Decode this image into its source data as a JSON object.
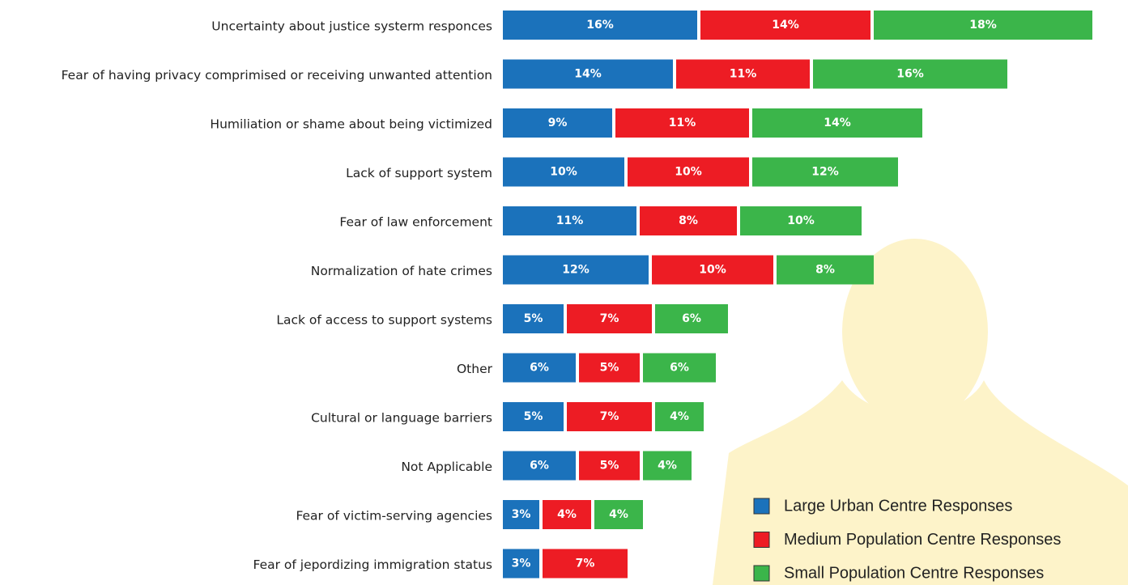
{
  "chart_data": {
    "type": "bar",
    "stacked": true,
    "categories": [
      "Uncertainty about justice systerm responces",
      "Fear of having privacy comprimised or receiving unwanted attention",
      "Humiliation or shame about being victimized",
      "Lack of support system",
      "Fear of law enforcement",
      "Normalization of hate crimes",
      "Lack of access to support systems",
      "Other",
      "Cultural or language barriers",
      "Not Applicable",
      "Fear of victim-serving agencies",
      "Fear of jepordizing immigration status"
    ],
    "series": [
      {
        "name": "Large Urban Centre Responses",
        "color": "#1b72bb",
        "values": [
          16,
          14,
          9,
          10,
          11,
          12,
          5,
          6,
          5,
          6,
          3,
          3
        ],
        "value_labels": [
          "16%",
          "14%",
          "9%",
          "10%",
          "11%",
          "12%",
          "5%",
          "6%",
          "5%",
          "6%",
          "3%",
          "3%"
        ]
      },
      {
        "name": "Medium Population Centre Responses",
        "color": "#ed1c24",
        "values": [
          14,
          11,
          11,
          10,
          8,
          10,
          7,
          5,
          7,
          5,
          4,
          7
        ],
        "value_labels": [
          "14%",
          "11%",
          "11%",
          "10%",
          "8%",
          "10%",
          "7%",
          "5%",
          "7%",
          "5%",
          "4%",
          "7%"
        ]
      },
      {
        "name": "Small Population Centre Responses",
        "color": "#3bb54a",
        "values": [
          18,
          16,
          14,
          12,
          10,
          8,
          6,
          6,
          4,
          4,
          4,
          null
        ],
        "value_labels": [
          "18%",
          "16%",
          "14%",
          "12%",
          "10%",
          "8%",
          "6%",
          "6%",
          "4%",
          "4%",
          "4%",
          null
        ]
      }
    ]
  }
}
